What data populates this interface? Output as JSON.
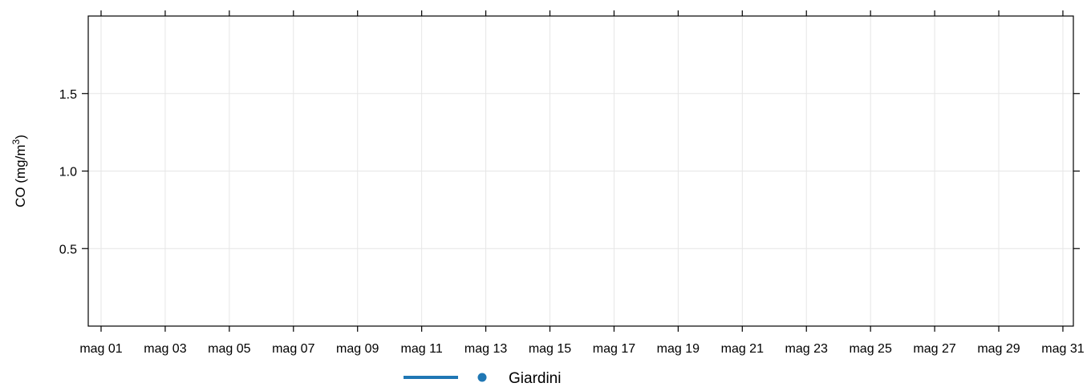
{
  "chart_data": {
    "type": "line",
    "title": "",
    "xlabel": "",
    "ylabel": "CO (mg/m",
    "ylabel_superscript": "3",
    "ylabel_suffix": ")",
    "x_ticks": [
      "mag 01",
      "mag 03",
      "mag 05",
      "mag 07",
      "mag 09",
      "mag 11",
      "mag 13",
      "mag 15",
      "mag 17",
      "mag 19",
      "mag 21",
      "mag 23",
      "mag 25",
      "mag 27",
      "mag 29",
      "mag 31"
    ],
    "xlim": [
      "mag 01",
      "mag 31"
    ],
    "y_ticks": [
      "0.5",
      "1.0",
      "1.5"
    ],
    "y_tick_values": [
      0.5,
      1.0,
      1.5
    ],
    "ylim": [
      0,
      2
    ],
    "grid": true,
    "legend_position": "bottom",
    "series": [
      {
        "name": "Giardini",
        "color": "#1f77b4",
        "values": []
      }
    ]
  }
}
